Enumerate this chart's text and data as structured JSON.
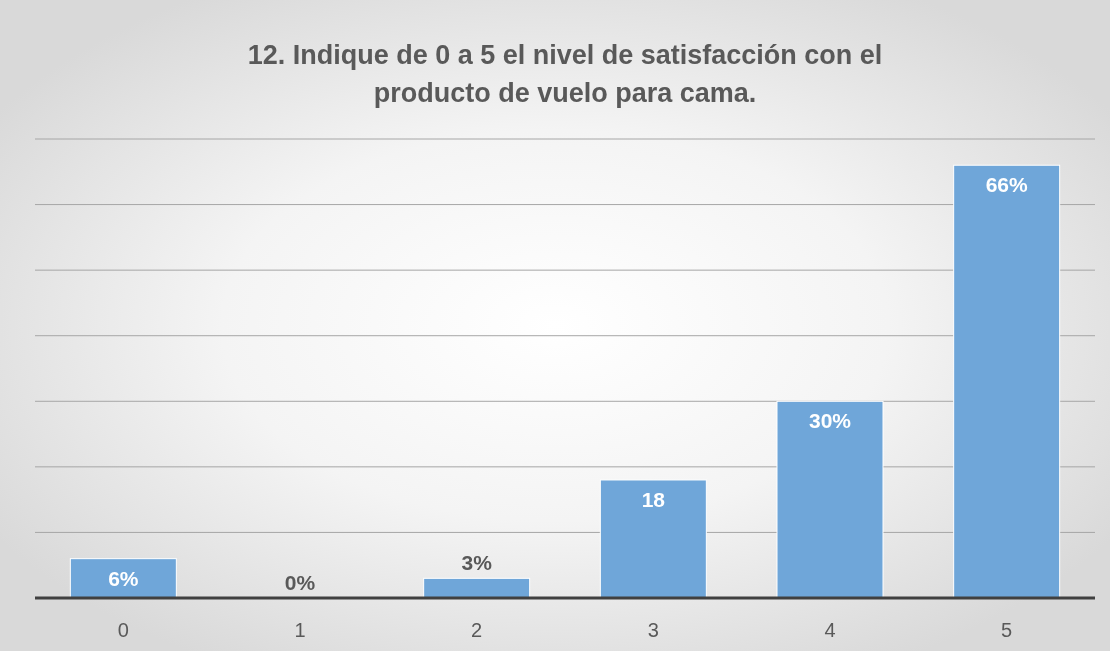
{
  "chart_data": {
    "type": "bar",
    "title": "12. Indique de 0 a 5 el nivel de satisfacción con el producto de vuelo para cama.",
    "categories": [
      "0",
      "1",
      "2",
      "3",
      "4",
      "5"
    ],
    "values": [
      6,
      0,
      3,
      18,
      30,
      66
    ],
    "value_labels": [
      "6%",
      "0%",
      "3%",
      "18",
      "30%",
      "66%"
    ],
    "color": "#6fa6d9",
    "ylim": [
      0,
      70
    ],
    "yticks": [
      {
        "value": 0,
        "label": null
      },
      {
        "value": 10,
        "label": null
      },
      {
        "value": 20,
        "label": null
      },
      {
        "value": 30,
        "label": null
      },
      {
        "value": 40,
        "label": null
      },
      {
        "value": 50,
        "label": null
      },
      {
        "value": 60,
        "label": null
      },
      {
        "value": 70,
        "label": null
      }
    ],
    "tick_labels": "x",
    "grid": "y"
  }
}
